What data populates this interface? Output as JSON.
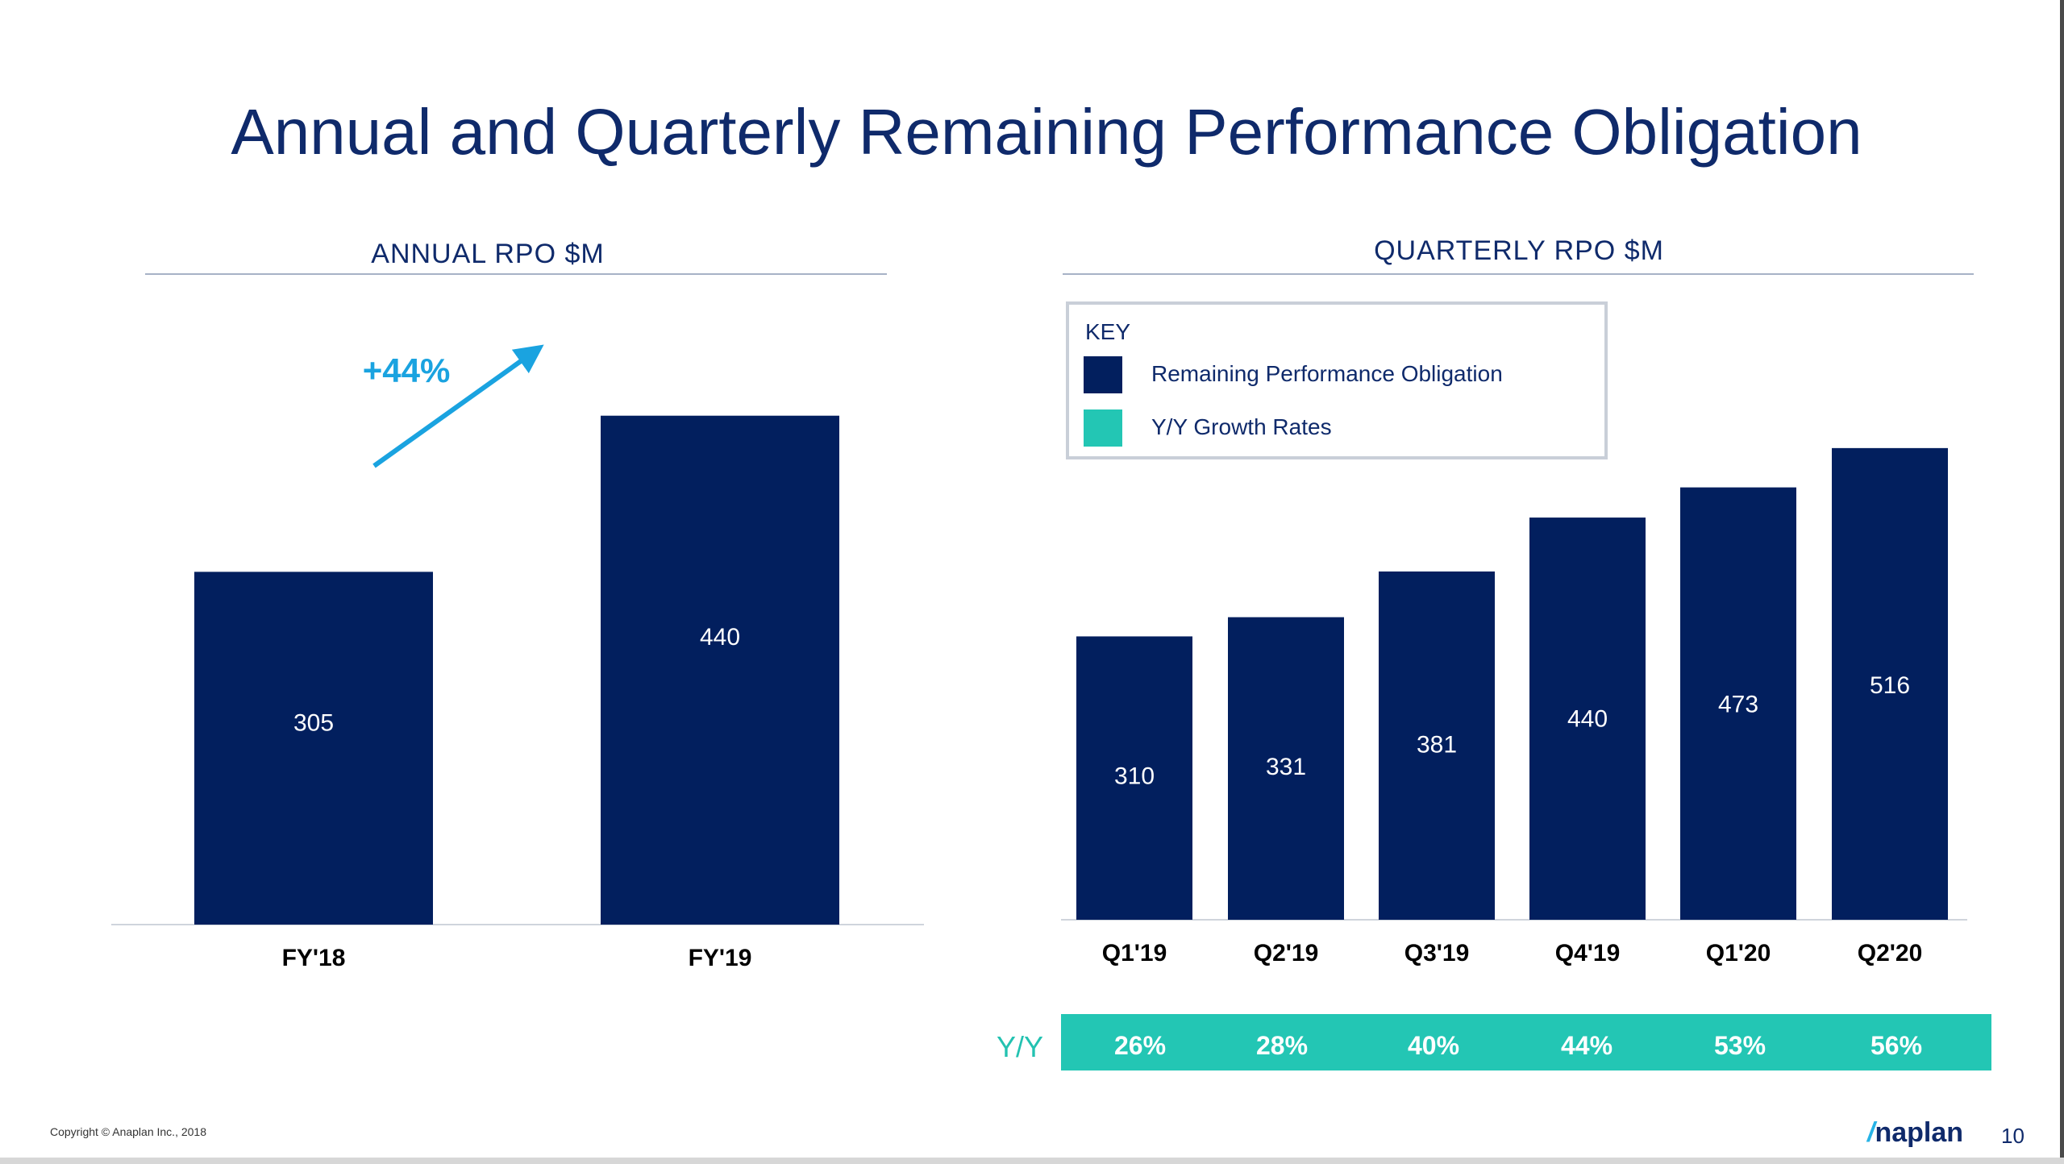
{
  "slide": {
    "title": "Annual and Quarterly Remaining Performance Obligation",
    "copyright": "Copyright © Anaplan Inc., 2018",
    "logo_mark": "/",
    "logo_text": "naplan",
    "page_number": "10"
  },
  "colors": {
    "bar": "#021f5e",
    "teal": "#23c6b4",
    "arrow": "#1aa3e0",
    "title": "#0f2a6b"
  },
  "chart_data": [
    {
      "type": "bar",
      "title": "ANNUAL  RPO  $M",
      "categories": [
        "FY'18",
        "FY'19"
      ],
      "values": [
        305,
        440
      ],
      "ylim": [
        0,
        460
      ],
      "annotation": "+44%",
      "xlabel": "",
      "ylabel": ""
    },
    {
      "type": "bar",
      "title": "QUARTERLY  RPO  $M",
      "categories": [
        "Q1'19",
        "Q2'19",
        "Q3'19",
        "Q4'19",
        "Q1'20",
        "Q2'20"
      ],
      "values": [
        310,
        331,
        381,
        440,
        473,
        516
      ],
      "ylim": [
        0,
        530
      ],
      "growth_label": "Y/Y",
      "growth_rates": [
        "26%",
        "28%",
        "40%",
        "44%",
        "53%",
        "56%"
      ],
      "legend": {
        "title": "KEY",
        "items": [
          "Remaining Performance Obligation",
          "Y/Y Growth Rates"
        ]
      },
      "xlabel": "",
      "ylabel": ""
    }
  ]
}
